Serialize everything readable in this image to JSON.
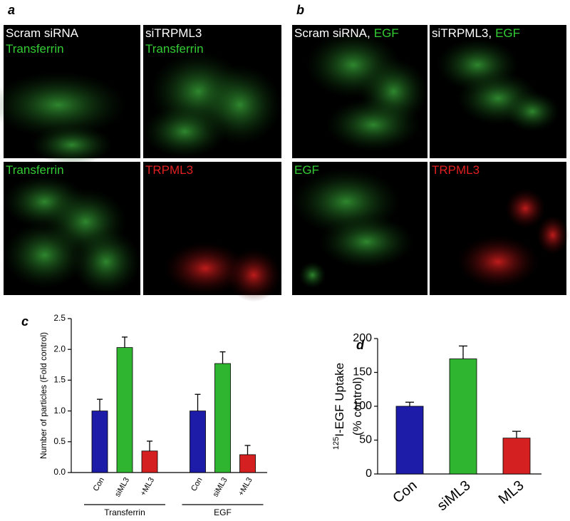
{
  "panels": [
    {
      "label": "a",
      "images": [
        {
          "captions": [
            [
              {
                "text": "Scram siRNA",
                "color": "#ffffff"
              }
            ],
            [
              {
                "text": "Transferrin",
                "color": "#33cc33"
              }
            ]
          ]
        },
        {
          "captions": [
            [
              {
                "text": "siTRPML3",
                "color": "#ffffff"
              }
            ],
            [
              {
                "text": "Transferrin",
                "color": "#33cc33"
              }
            ]
          ]
        },
        {
          "captions": [
            [
              {
                "text": "Transferrin",
                "color": "#33cc33"
              }
            ]
          ]
        },
        {
          "captions": [
            [
              {
                "text": "TRPML3",
                "color": "#e02020"
              }
            ]
          ]
        }
      ]
    },
    {
      "label": "b",
      "images": [
        {
          "captions": [
            [
              {
                "text": "Scram siRNA,",
                "color": "#ffffff"
              },
              {
                "text": "EGF",
                "color": "#33cc33"
              }
            ]
          ]
        },
        {
          "captions": [
            [
              {
                "text": "siTRPML3,",
                "color": "#ffffff"
              },
              {
                "text": "EGF",
                "color": "#33cc33"
              }
            ]
          ]
        },
        {
          "captions": [
            [
              {
                "text": "EGF",
                "color": "#33cc33"
              }
            ]
          ]
        },
        {
          "captions": [
            [
              {
                "text": "TRPML3",
                "color": "#e02020"
              }
            ]
          ]
        }
      ]
    }
  ],
  "chart_data": [
    {
      "type": "bar",
      "label": "c",
      "ylabel": [
        {
          "text": "Number of particles (Fold control)"
        }
      ],
      "groups": [
        "Transferrin",
        "EGF"
      ],
      "categories": [
        "Con",
        "siML3",
        "+ML3",
        "Con",
        "siML3",
        "+ML3"
      ],
      "values": [
        1.0,
        2.03,
        0.35,
        1.0,
        1.77,
        0.29
      ],
      "errors": [
        0.19,
        0.17,
        0.16,
        0.27,
        0.19,
        0.15
      ],
      "colors": [
        "#1c1ca8",
        "#2fb52f",
        "#d42020",
        "#1c1ca8",
        "#2fb52f",
        "#d42020"
      ],
      "ylim": [
        0,
        2.5
      ],
      "yticks": [
        {
          "value": 0,
          "label": "0.0"
        },
        0.5,
        {
          "value": 1,
          "label": "1.0"
        },
        1.5,
        {
          "value": 2,
          "label": "2.0"
        },
        2.5
      ]
    },
    {
      "type": "bar",
      "label": "d",
      "ylabel": [
        {
          "sup": "125",
          "text": "I-EGF Uptake"
        },
        {
          "text": "(% control)"
        }
      ],
      "categories": [
        "Con",
        "siML3",
        "ML3"
      ],
      "values": [
        100,
        170,
        53
      ],
      "errors": [
        6,
        19,
        10
      ],
      "colors": [
        "#1c1ca8",
        "#2fb52f",
        "#d42020"
      ],
      "ylim": [
        0,
        200
      ],
      "yticks": [
        0,
        50,
        100,
        150,
        200
      ]
    }
  ]
}
